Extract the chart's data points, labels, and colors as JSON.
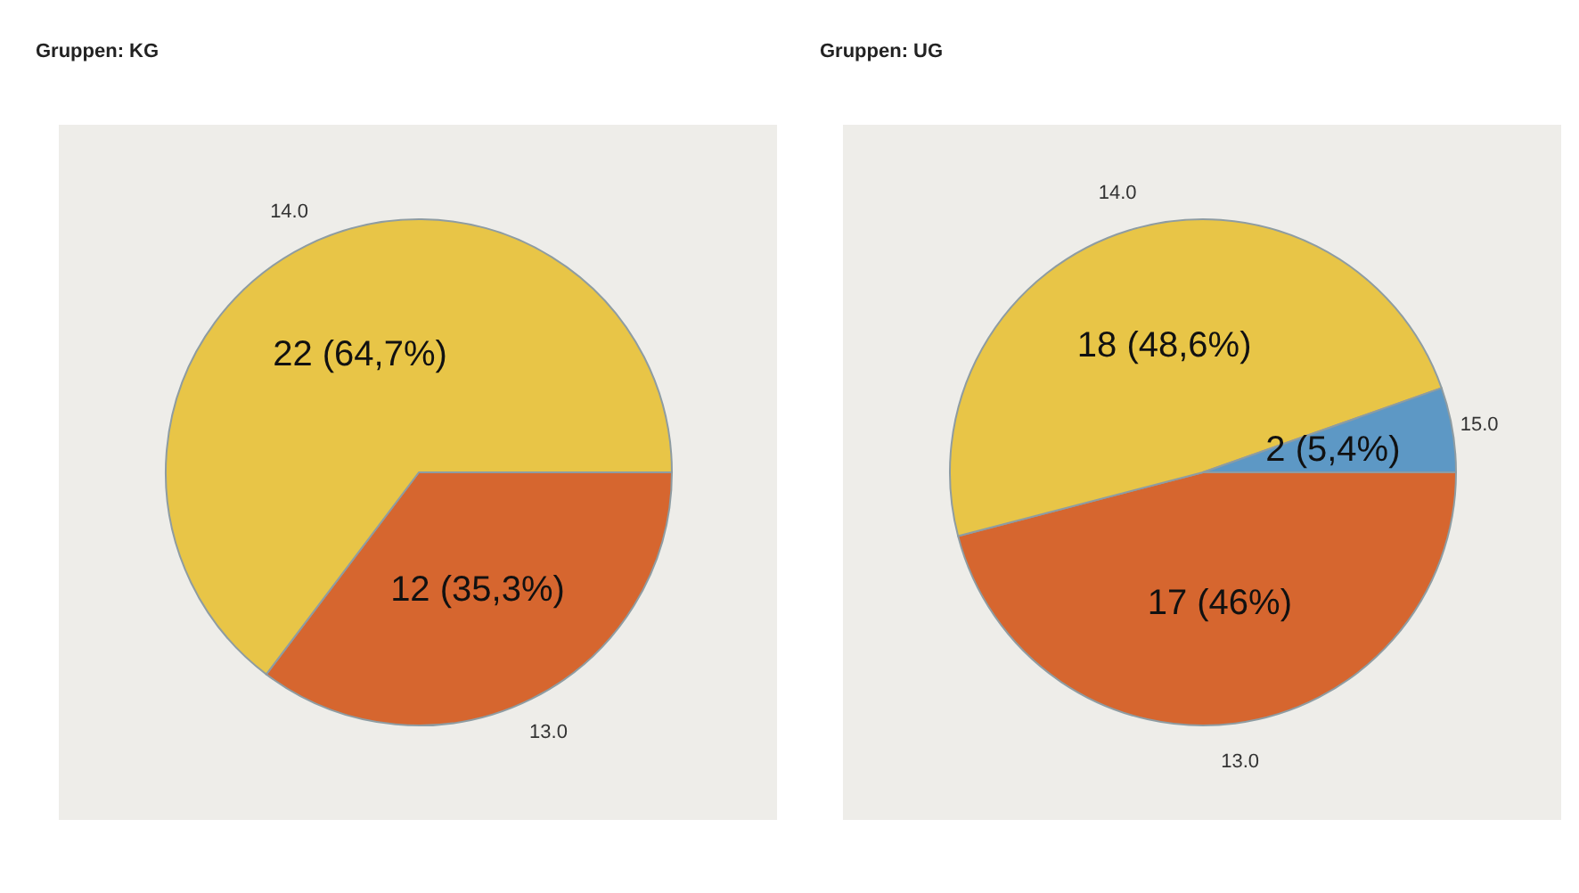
{
  "chart_data": [
    {
      "type": "pie",
      "title": "Gruppen: KG",
      "categories": [
        "13.0",
        "14.0"
      ],
      "values": [
        12,
        22
      ],
      "colors": [
        "#d6662f",
        "#e8c547"
      ],
      "value_labels": [
        "12 (35,3%)",
        "22 (64,7%)"
      ]
    },
    {
      "type": "pie",
      "title": "Gruppen: UG",
      "categories": [
        "13.0",
        "14.0",
        "15.0"
      ],
      "values": [
        17,
        18,
        2
      ],
      "colors": [
        "#d6662f",
        "#e8c547",
        "#5d98c5"
      ],
      "value_labels": [
        "17 (46%)",
        "18 (48,6%)",
        "2 (5,4%)"
      ]
    }
  ]
}
